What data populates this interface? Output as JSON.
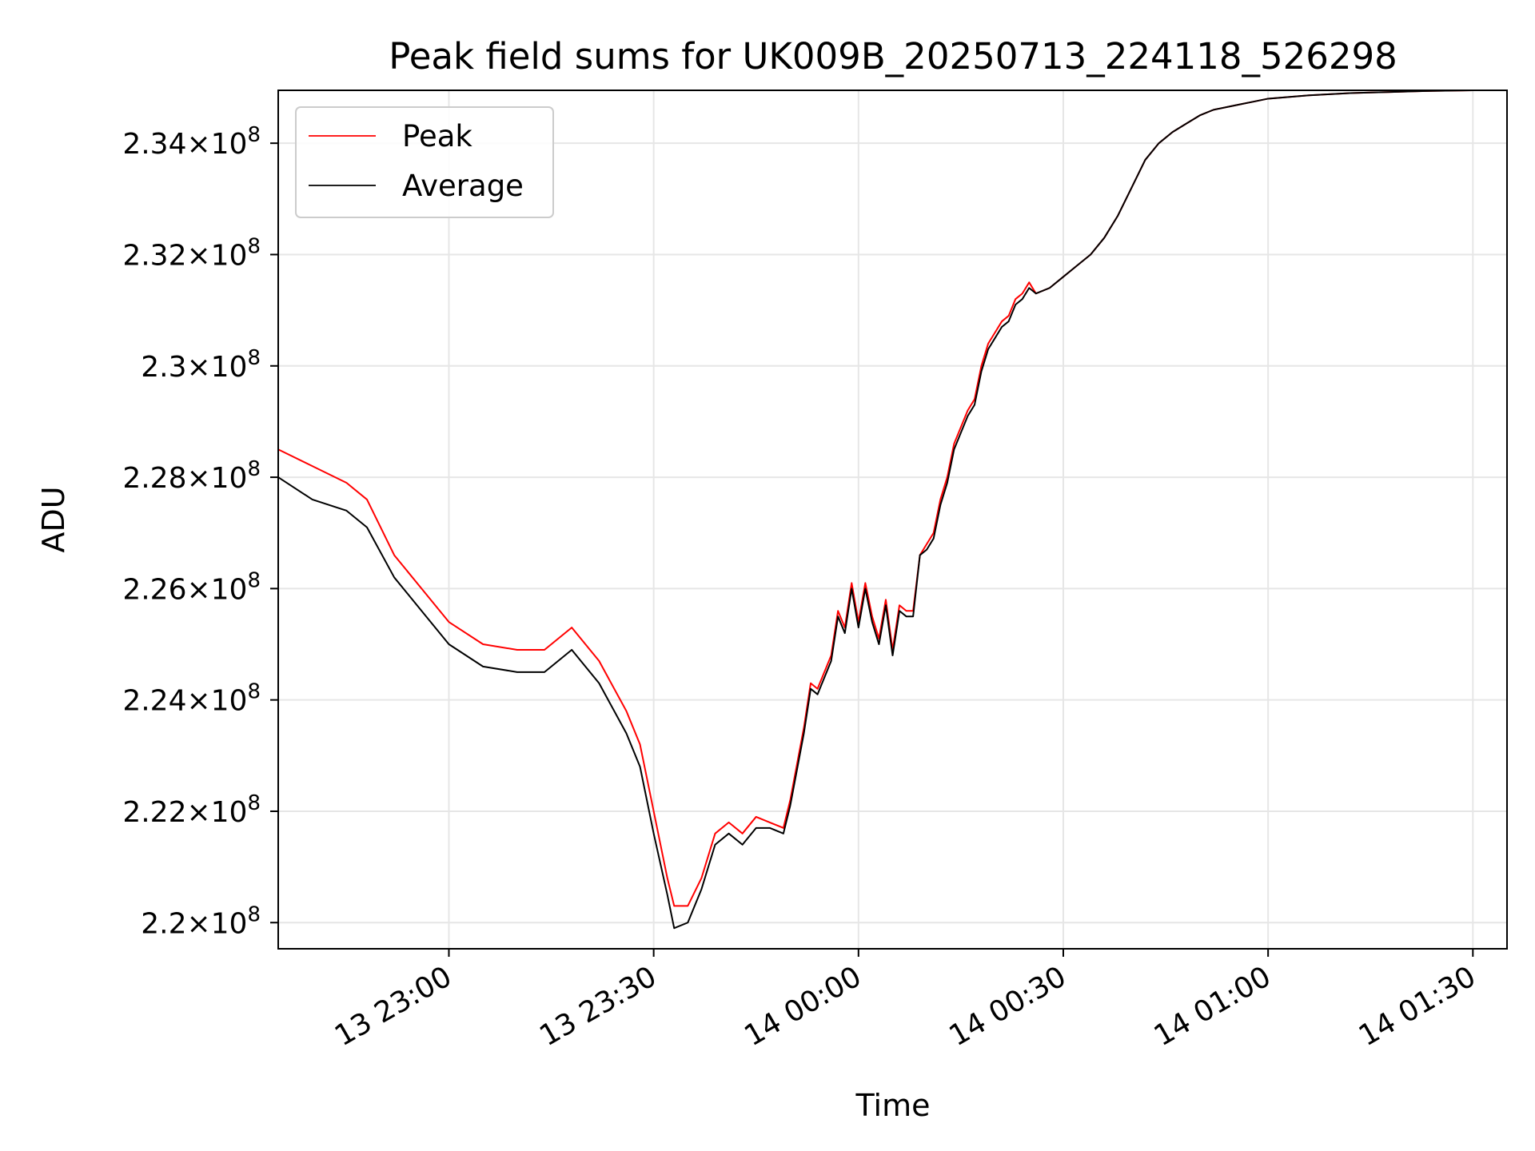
{
  "chart_data": {
    "type": "line",
    "title": "Peak field sums for UK009B_20250713_224118_526298",
    "xlabel": "Time",
    "ylabel": "ADU",
    "x_unit": "minutes after 13 22:00",
    "xlim": [
      35,
      215
    ],
    "ylim": [
      219530000.0,
      234950000.0
    ],
    "x_ticks": [
      {
        "value": 60,
        "label": "13 23:00"
      },
      {
        "value": 90,
        "label": "13 23:30"
      },
      {
        "value": 120,
        "label": "14 00:00"
      },
      {
        "value": 150,
        "label": "14 00:30"
      },
      {
        "value": 180,
        "label": "14 01:00"
      },
      {
        "value": 210,
        "label": "14 01:30"
      }
    ],
    "y_ticks": [
      {
        "value": 220000000.0,
        "mantissa": "2.2"
      },
      {
        "value": 222000000.0,
        "mantissa": "2.22"
      },
      {
        "value": 224000000.0,
        "mantissa": "2.24"
      },
      {
        "value": 226000000.0,
        "mantissa": "2.26"
      },
      {
        "value": 228000000.0,
        "mantissa": "2.28"
      },
      {
        "value": 230000000.0,
        "mantissa": "2.3"
      },
      {
        "value": 232000000.0,
        "mantissa": "2.32"
      },
      {
        "value": 234000000.0,
        "mantissa": "2.34"
      }
    ],
    "y_tick_suffix": "×10",
    "y_tick_exponent": "8",
    "grid": true,
    "legend_position": "top-left",
    "series": [
      {
        "name": "Peak",
        "color": "#ff0000",
        "points": [
          [
            35,
            228.5
          ],
          [
            40,
            228.2
          ],
          [
            45,
            227.9
          ],
          [
            48,
            227.6
          ],
          [
            52,
            226.6
          ],
          [
            56,
            226.0
          ],
          [
            60,
            225.4
          ],
          [
            65,
            225.0
          ],
          [
            70,
            224.9
          ],
          [
            74,
            224.9
          ],
          [
            78,
            225.3
          ],
          [
            82,
            224.7
          ],
          [
            86,
            223.8
          ],
          [
            88,
            223.2
          ],
          [
            90,
            222.0
          ],
          [
            92,
            220.8
          ],
          [
            93,
            220.3
          ],
          [
            95,
            220.3
          ],
          [
            97,
            220.8
          ],
          [
            99,
            221.6
          ],
          [
            101,
            221.8
          ],
          [
            103,
            221.6
          ],
          [
            105,
            221.9
          ],
          [
            107,
            221.8
          ],
          [
            109,
            221.7
          ],
          [
            110,
            222.2
          ],
          [
            112,
            223.5
          ],
          [
            113,
            224.3
          ],
          [
            114,
            224.2
          ],
          [
            116,
            224.8
          ],
          [
            117,
            225.6
          ],
          [
            118,
            225.3
          ],
          [
            119,
            226.1
          ],
          [
            120,
            225.4
          ],
          [
            121,
            226.1
          ],
          [
            122,
            225.5
          ],
          [
            123,
            225.1
          ],
          [
            124,
            225.8
          ],
          [
            125,
            224.9
          ],
          [
            126,
            225.7
          ],
          [
            127,
            225.6
          ],
          [
            128,
            225.6
          ],
          [
            129,
            226.6
          ],
          [
            130,
            226.8
          ],
          [
            131,
            227.0
          ],
          [
            132,
            227.6
          ],
          [
            133,
            228.0
          ],
          [
            134,
            228.6
          ],
          [
            135,
            228.9
          ],
          [
            136,
            229.2
          ],
          [
            137,
            229.4
          ],
          [
            138,
            230.0
          ],
          [
            139,
            230.4
          ],
          [
            140,
            230.6
          ],
          [
            141,
            230.8
          ],
          [
            142,
            230.9
          ],
          [
            143,
            231.2
          ],
          [
            144,
            231.3
          ],
          [
            145,
            231.5
          ],
          [
            146,
            231.3
          ],
          [
            148,
            231.4
          ],
          [
            150,
            231.6
          ],
          [
            152,
            231.8
          ],
          [
            154,
            232.0
          ],
          [
            156,
            232.3
          ],
          [
            158,
            232.7
          ],
          [
            160,
            233.2
          ],
          [
            162,
            233.7
          ],
          [
            164,
            234.0
          ],
          [
            166,
            234.2
          ],
          [
            168,
            234.35
          ],
          [
            170,
            234.5
          ],
          [
            172,
            234.6
          ],
          [
            174,
            234.65
          ],
          [
            176,
            234.7
          ],
          [
            178,
            234.75
          ],
          [
            180,
            234.8
          ],
          [
            183,
            234.83
          ],
          [
            186,
            234.86
          ],
          [
            189,
            234.88
          ],
          [
            192,
            234.9
          ],
          [
            195,
            234.91
          ],
          [
            198,
            234.92
          ],
          [
            201,
            234.93
          ],
          [
            204,
            234.94
          ],
          [
            207,
            234.945
          ],
          [
            210,
            234.95
          ],
          [
            215,
            234.95
          ]
        ]
      },
      {
        "name": "Average",
        "color": "#000000",
        "points": [
          [
            35,
            228.0
          ],
          [
            40,
            227.6
          ],
          [
            45,
            227.4
          ],
          [
            48,
            227.1
          ],
          [
            52,
            226.2
          ],
          [
            56,
            225.6
          ],
          [
            60,
            225.0
          ],
          [
            65,
            224.6
          ],
          [
            70,
            224.5
          ],
          [
            74,
            224.5
          ],
          [
            78,
            224.9
          ],
          [
            82,
            224.3
          ],
          [
            86,
            223.4
          ],
          [
            88,
            222.8
          ],
          [
            90,
            221.6
          ],
          [
            92,
            220.5
          ],
          [
            93,
            219.9
          ],
          [
            95,
            220.0
          ],
          [
            97,
            220.6
          ],
          [
            99,
            221.4
          ],
          [
            101,
            221.6
          ],
          [
            103,
            221.4
          ],
          [
            105,
            221.7
          ],
          [
            107,
            221.7
          ],
          [
            109,
            221.6
          ],
          [
            110,
            222.1
          ],
          [
            112,
            223.4
          ],
          [
            113,
            224.2
          ],
          [
            114,
            224.1
          ],
          [
            116,
            224.7
          ],
          [
            117,
            225.5
          ],
          [
            118,
            225.2
          ],
          [
            119,
            226.0
          ],
          [
            120,
            225.3
          ],
          [
            121,
            226.0
          ],
          [
            122,
            225.4
          ],
          [
            123,
            225.0
          ],
          [
            124,
            225.7
          ],
          [
            125,
            224.8
          ],
          [
            126,
            225.6
          ],
          [
            127,
            225.5
          ],
          [
            128,
            225.5
          ],
          [
            129,
            226.6
          ],
          [
            130,
            226.7
          ],
          [
            131,
            226.9
          ],
          [
            132,
            227.5
          ],
          [
            133,
            227.9
          ],
          [
            134,
            228.5
          ],
          [
            135,
            228.8
          ],
          [
            136,
            229.1
          ],
          [
            137,
            229.3
          ],
          [
            138,
            229.9
          ],
          [
            139,
            230.3
          ],
          [
            140,
            230.5
          ],
          [
            141,
            230.7
          ],
          [
            142,
            230.8
          ],
          [
            143,
            231.1
          ],
          [
            144,
            231.2
          ],
          [
            145,
            231.4
          ],
          [
            146,
            231.3
          ],
          [
            148,
            231.4
          ],
          [
            150,
            231.6
          ],
          [
            152,
            231.8
          ],
          [
            154,
            232.0
          ],
          [
            156,
            232.3
          ],
          [
            158,
            232.7
          ],
          [
            160,
            233.2
          ],
          [
            162,
            233.7
          ],
          [
            164,
            234.0
          ],
          [
            166,
            234.2
          ],
          [
            168,
            234.35
          ],
          [
            170,
            234.5
          ],
          [
            172,
            234.6
          ],
          [
            174,
            234.65
          ],
          [
            176,
            234.7
          ],
          [
            178,
            234.75
          ],
          [
            180,
            234.8
          ],
          [
            183,
            234.83
          ],
          [
            186,
            234.86
          ],
          [
            189,
            234.88
          ],
          [
            192,
            234.9
          ],
          [
            195,
            234.91
          ],
          [
            198,
            234.92
          ],
          [
            201,
            234.93
          ],
          [
            204,
            234.94
          ],
          [
            207,
            234.945
          ],
          [
            210,
            234.95
          ],
          [
            215,
            234.95
          ]
        ]
      }
    ]
  }
}
